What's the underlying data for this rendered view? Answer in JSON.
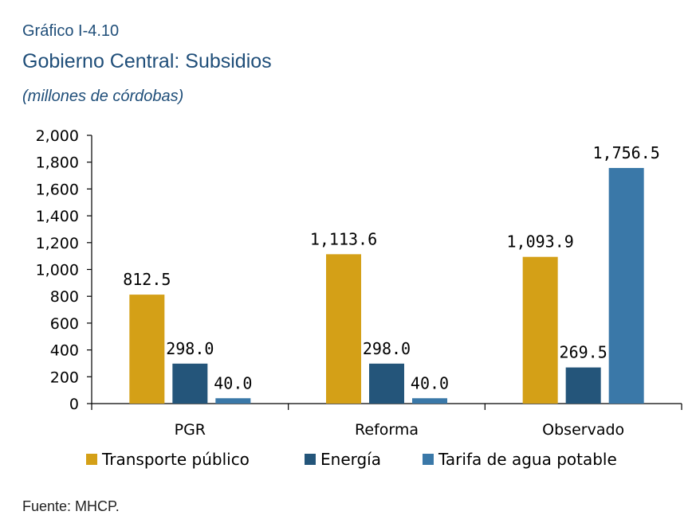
{
  "header": {
    "kicker": "Gráfico I-4.10",
    "title": "Gobierno Central: Subsidios",
    "subtitle": "(millones de córdobas)"
  },
  "footer": {
    "source": "Fuente: MHCP."
  },
  "chart_data": {
    "type": "bar",
    "categories": [
      "PGR",
      "Reforma",
      "Observado"
    ],
    "series": [
      {
        "name": "Transporte público",
        "values": [
          812.5,
          1113.6,
          1093.9
        ],
        "labels": [
          "812.5",
          "1,113.6",
          "1,093.9"
        ],
        "color": "#d4a017"
      },
      {
        "name": "Energía",
        "values": [
          298.0,
          298.0,
          269.5
        ],
        "labels": [
          "298.0",
          "298.0",
          "269.5"
        ],
        "color": "#24557a"
      },
      {
        "name": "Tarifa de agua potable",
        "values": [
          40.0,
          40.0,
          1756.5
        ],
        "labels": [
          "40.0",
          "40.0",
          "1,756.5"
        ],
        "color": "#3a78a8"
      }
    ],
    "ylim": [
      0,
      2000
    ],
    "yticks": [
      0,
      200,
      400,
      600,
      800,
      1000,
      1200,
      1400,
      1600,
      1800,
      2000
    ],
    "ytick_labels": [
      "0",
      "200",
      "400",
      "600",
      "800",
      "1,000",
      "1,200",
      "1,400",
      "1,600",
      "1,800",
      "2,000"
    ],
    "grid": false,
    "legend_position": "bottom"
  }
}
